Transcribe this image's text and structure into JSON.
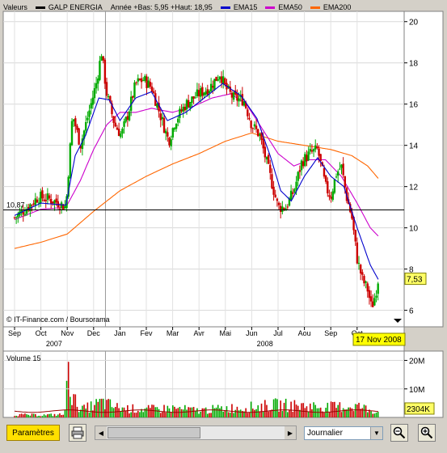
{
  "legend": {
    "instrument_label": "Valeurs",
    "instrument_name": "GALP ENERGIA",
    "range_text": "Année +Bas: 5,95 +Haut: 18,95",
    "items": [
      {
        "label": "EMA15",
        "color": "#0000cc"
      },
      {
        "label": "EMA50",
        "color": "#cc00cc"
      },
      {
        "label": "EMA200",
        "color": "#ff6600"
      }
    ]
  },
  "colors": {
    "up": "#00aa00",
    "down": "#cc0000",
    "ema15": "#0000cc",
    "ema50": "#cc00cc",
    "ema200": "#ff6600",
    "price_badge": "#ffff66"
  },
  "copyright": "© IT-Finance.com / Boursorama",
  "reference_line_label": "10,87",
  "last_price_label": "7,53",
  "date_badge": "17 Nov 2008",
  "volume_title": "Volume 15",
  "volume_last_label": "2304K",
  "toolbar": {
    "params_label": "Paramètres",
    "period_select": "Journalier"
  },
  "chart_data": [
    {
      "type": "candlestick",
      "title": "GALP ENERGIA",
      "y_ticks": [
        "6",
        "8",
        "10",
        "12",
        "14",
        "16",
        "18",
        "20"
      ],
      "ylim": [
        5.2,
        20.5
      ],
      "month_ticks": [
        "Sep",
        "Oct",
        "Nov",
        "Dec",
        "Jan",
        "Fev",
        "Mar",
        "Avr",
        "Mai",
        "Jun",
        "Jul",
        "Aou",
        "Sep",
        "Oct"
      ],
      "year_labels": [
        {
          "label": "2007",
          "after_month": "Oct"
        },
        {
          "label": "2008",
          "after_month": "Jun"
        }
      ],
      "reference_value": 10.87,
      "last_value": 7.53,
      "period_low": 5.95,
      "period_high": 18.95,
      "close_keypoints": [
        {
          "m": 0.0,
          "v": 10.5
        },
        {
          "m": 0.5,
          "v": 11.0
        },
        {
          "m": 0.9,
          "v": 11.5
        },
        {
          "m": 1.3,
          "v": 11.4
        },
        {
          "m": 1.7,
          "v": 11.2
        },
        {
          "m": 1.95,
          "v": 11.0
        },
        {
          "m": 2.05,
          "v": 12.8
        },
        {
          "m": 2.2,
          "v": 15.5
        },
        {
          "m": 2.5,
          "v": 14.0
        },
        {
          "m": 2.8,
          "v": 15.5
        },
        {
          "m": 3.1,
          "v": 17.0
        },
        {
          "m": 3.3,
          "v": 18.5
        },
        {
          "m": 3.5,
          "v": 16.5
        },
        {
          "m": 3.8,
          "v": 15.0
        },
        {
          "m": 4.05,
          "v": 14.5
        },
        {
          "m": 4.3,
          "v": 15.5
        },
        {
          "m": 4.6,
          "v": 17.0
        },
        {
          "m": 4.9,
          "v": 17.2
        },
        {
          "m": 5.2,
          "v": 16.8
        },
        {
          "m": 5.5,
          "v": 15.6
        },
        {
          "m": 5.85,
          "v": 14.2
        },
        {
          "m": 6.1,
          "v": 15.2
        },
        {
          "m": 6.5,
          "v": 16.0
        },
        {
          "m": 7.0,
          "v": 16.5
        },
        {
          "m": 7.4,
          "v": 16.8
        },
        {
          "m": 7.8,
          "v": 17.5
        },
        {
          "m": 8.0,
          "v": 16.8
        },
        {
          "m": 8.3,
          "v": 16.3
        },
        {
          "m": 8.7,
          "v": 16.2
        },
        {
          "m": 9.0,
          "v": 15.0
        },
        {
          "m": 9.3,
          "v": 14.5
        },
        {
          "m": 9.6,
          "v": 13.0
        },
        {
          "m": 10.0,
          "v": 11.0
        },
        {
          "m": 10.3,
          "v": 11.0
        },
        {
          "m": 10.6,
          "v": 11.8
        },
        {
          "m": 10.9,
          "v": 13.2
        },
        {
          "m": 11.2,
          "v": 13.6
        },
        {
          "m": 11.5,
          "v": 13.8
        },
        {
          "m": 11.8,
          "v": 12.0
        },
        {
          "m": 12.0,
          "v": 11.5
        },
        {
          "m": 12.2,
          "v": 12.6
        },
        {
          "m": 12.4,
          "v": 13.0
        },
        {
          "m": 12.6,
          "v": 11.5
        },
        {
          "m": 12.8,
          "v": 10.5
        },
        {
          "m": 13.0,
          "v": 8.5
        },
        {
          "m": 13.2,
          "v": 7.5
        },
        {
          "m": 13.4,
          "v": 7.0
        },
        {
          "m": 13.55,
          "v": 6.1
        },
        {
          "m": 13.7,
          "v": 6.8
        },
        {
          "m": 13.8,
          "v": 7.53
        }
      ],
      "ema15_keypoints": [
        {
          "m": 0.0,
          "v": 10.6
        },
        {
          "m": 1.0,
          "v": 11.2
        },
        {
          "m": 1.95,
          "v": 11.1
        },
        {
          "m": 2.3,
          "v": 13.5
        },
        {
          "m": 2.7,
          "v": 14.5
        },
        {
          "m": 3.2,
          "v": 16.3
        },
        {
          "m": 3.6,
          "v": 16.2
        },
        {
          "m": 4.0,
          "v": 15.2
        },
        {
          "m": 4.6,
          "v": 16.3
        },
        {
          "m": 5.2,
          "v": 16.6
        },
        {
          "m": 5.8,
          "v": 15.2
        },
        {
          "m": 6.5,
          "v": 15.6
        },
        {
          "m": 7.2,
          "v": 16.3
        },
        {
          "m": 7.9,
          "v": 17.0
        },
        {
          "m": 8.6,
          "v": 16.4
        },
        {
          "m": 9.2,
          "v": 15.3
        },
        {
          "m": 9.7,
          "v": 13.5
        },
        {
          "m": 10.1,
          "v": 11.8
        },
        {
          "m": 10.5,
          "v": 11.3
        },
        {
          "m": 11.0,
          "v": 12.5
        },
        {
          "m": 11.5,
          "v": 13.4
        },
        {
          "m": 12.0,
          "v": 12.5
        },
        {
          "m": 12.5,
          "v": 12.0
        },
        {
          "m": 13.0,
          "v": 10.0
        },
        {
          "m": 13.5,
          "v": 8.2
        },
        {
          "m": 13.8,
          "v": 7.5
        }
      ],
      "ema50_keypoints": [
        {
          "m": 0.0,
          "v": 10.4
        },
        {
          "m": 1.0,
          "v": 10.9
        },
        {
          "m": 1.95,
          "v": 11.0
        },
        {
          "m": 2.5,
          "v": 12.3
        },
        {
          "m": 3.0,
          "v": 13.8
        },
        {
          "m": 3.5,
          "v": 15.0
        },
        {
          "m": 4.0,
          "v": 15.6
        },
        {
          "m": 4.6,
          "v": 15.6
        },
        {
          "m": 5.2,
          "v": 15.8
        },
        {
          "m": 6.0,
          "v": 15.6
        },
        {
          "m": 6.8,
          "v": 15.9
        },
        {
          "m": 7.5,
          "v": 16.3
        },
        {
          "m": 8.2,
          "v": 16.5
        },
        {
          "m": 8.8,
          "v": 16.0
        },
        {
          "m": 9.4,
          "v": 14.8
        },
        {
          "m": 10.0,
          "v": 13.6
        },
        {
          "m": 10.6,
          "v": 13.0
        },
        {
          "m": 11.2,
          "v": 13.3
        },
        {
          "m": 11.8,
          "v": 13.3
        },
        {
          "m": 12.4,
          "v": 12.5
        },
        {
          "m": 13.0,
          "v": 11.2
        },
        {
          "m": 13.5,
          "v": 10.0
        },
        {
          "m": 13.8,
          "v": 9.6
        }
      ],
      "ema200_keypoints": [
        {
          "m": 0.0,
          "v": 9.0
        },
        {
          "m": 1.0,
          "v": 9.3
        },
        {
          "m": 2.0,
          "v": 9.7
        },
        {
          "m": 3.0,
          "v": 10.8
        },
        {
          "m": 4.0,
          "v": 11.8
        },
        {
          "m": 5.0,
          "v": 12.5
        },
        {
          "m": 6.0,
          "v": 13.1
        },
        {
          "m": 7.0,
          "v": 13.6
        },
        {
          "m": 8.0,
          "v": 14.2
        },
        {
          "m": 9.0,
          "v": 14.6
        },
        {
          "m": 10.0,
          "v": 14.2
        },
        {
          "m": 11.0,
          "v": 14.0
        },
        {
          "m": 12.0,
          "v": 13.8
        },
        {
          "m": 12.8,
          "v": 13.5
        },
        {
          "m": 13.4,
          "v": 13.0
        },
        {
          "m": 13.8,
          "v": 12.4
        }
      ]
    },
    {
      "type": "bar",
      "title": "Volume 15",
      "y_ticks": [
        "10M",
        "20M"
      ],
      "ylim": [
        0,
        21
      ],
      "unit": "M",
      "volume_keypoints": [
        {
          "m": 0.0,
          "v": 1.2
        },
        {
          "m": 1.0,
          "v": 1.0
        },
        {
          "m": 1.9,
          "v": 1.3
        },
        {
          "m": 2.05,
          "v": 19.5
        },
        {
          "m": 2.2,
          "v": 8.0
        },
        {
          "m": 2.6,
          "v": 3.5
        },
        {
          "m": 3.3,
          "v": 6.5
        },
        {
          "m": 4.0,
          "v": 4.0
        },
        {
          "m": 5.0,
          "v": 3.5
        },
        {
          "m": 6.0,
          "v": 4.0
        },
        {
          "m": 7.0,
          "v": 3.0
        },
        {
          "m": 8.0,
          "v": 4.0
        },
        {
          "m": 9.0,
          "v": 4.5
        },
        {
          "m": 10.0,
          "v": 5.5
        },
        {
          "m": 11.0,
          "v": 5.0
        },
        {
          "m": 12.0,
          "v": 4.5
        },
        {
          "m": 13.0,
          "v": 5.0
        },
        {
          "m": 13.8,
          "v": 2.3
        }
      ],
      "average_level": 2.2,
      "last_value_label": "2304K"
    }
  ]
}
